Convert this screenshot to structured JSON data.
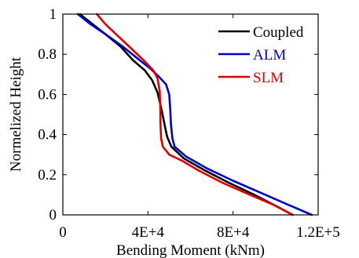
{
  "chart_data": {
    "type": "line",
    "title": "",
    "xlabel": "Bending Moment (kNm)",
    "ylabel": "Normelized Height",
    "xlim": [
      0,
      120000
    ],
    "ylim": [
      0,
      1
    ],
    "x_ticks": [
      0,
      40000,
      80000,
      120000
    ],
    "x_tick_labels": [
      "0",
      "4E+4",
      "8E+4",
      "1.2E+5"
    ],
    "y_ticks": [
      0,
      0.2,
      0.4,
      0.6,
      0.8,
      1
    ],
    "y_tick_labels": [
      "0",
      "0.2",
      "0.4",
      "0.6",
      "0.8",
      "1"
    ],
    "grid": false,
    "legend_position": "top-right",
    "series": [
      {
        "name": "Coupled",
        "color": "#000000",
        "points": [
          [
            8000,
            1.0
          ],
          [
            14000,
            0.95
          ],
          [
            20000,
            0.9
          ],
          [
            27000,
            0.84
          ],
          [
            33000,
            0.77
          ],
          [
            38500,
            0.72
          ],
          [
            42000,
            0.67
          ],
          [
            44500,
            0.61
          ],
          [
            46500,
            0.52
          ],
          [
            48000,
            0.44
          ],
          [
            49000,
            0.39
          ],
          [
            51000,
            0.34
          ],
          [
            57000,
            0.28
          ],
          [
            67000,
            0.22
          ],
          [
            78000,
            0.16
          ],
          [
            90000,
            0.1
          ],
          [
            101000,
            0.04
          ],
          [
            108000,
            0.0
          ]
        ]
      },
      {
        "name": "ALM",
        "color": "#0000cc",
        "points": [
          [
            7000,
            1.0
          ],
          [
            13000,
            0.95
          ],
          [
            20000,
            0.9
          ],
          [
            28000,
            0.84
          ],
          [
            35000,
            0.78
          ],
          [
            41000,
            0.73
          ],
          [
            45000,
            0.69
          ],
          [
            48500,
            0.65
          ],
          [
            50000,
            0.6
          ],
          [
            50500,
            0.52
          ],
          [
            50800,
            0.45
          ],
          [
            51500,
            0.38
          ],
          [
            52500,
            0.34
          ],
          [
            58000,
            0.29
          ],
          [
            68000,
            0.23
          ],
          [
            80000,
            0.17
          ],
          [
            93000,
            0.11
          ],
          [
            106000,
            0.05
          ],
          [
            117000,
            0.0
          ]
        ]
      },
      {
        "name": "SLM",
        "color": "#dd0000",
        "points": [
          [
            16000,
            1.0
          ],
          [
            20000,
            0.95
          ],
          [
            26000,
            0.89
          ],
          [
            32000,
            0.83
          ],
          [
            38000,
            0.77
          ],
          [
            42500,
            0.72
          ],
          [
            44500,
            0.68
          ],
          [
            45500,
            0.62
          ],
          [
            45800,
            0.55
          ],
          [
            45900,
            0.45
          ],
          [
            46200,
            0.38
          ],
          [
            47000,
            0.34
          ],
          [
            50000,
            0.3
          ],
          [
            56000,
            0.27
          ],
          [
            64000,
            0.22
          ],
          [
            75000,
            0.16
          ],
          [
            88000,
            0.1
          ],
          [
            99000,
            0.05
          ],
          [
            108000,
            0.0
          ]
        ]
      }
    ]
  }
}
